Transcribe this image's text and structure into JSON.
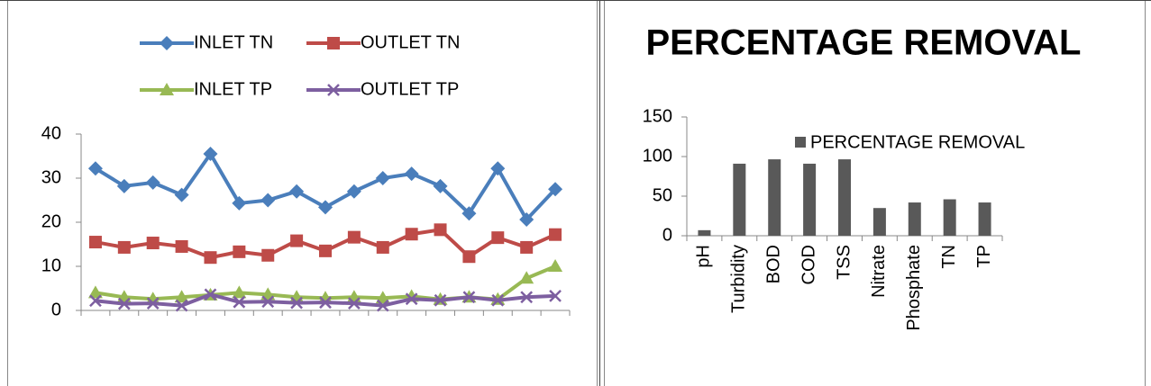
{
  "chart_data": [
    {
      "type": "line",
      "categories": [
        null,
        null,
        null,
        null,
        null,
        null,
        null,
        null,
        null,
        null,
        null,
        null,
        null,
        null,
        null,
        null,
        null
      ],
      "series": [
        {
          "name": "INLET TN",
          "color": "#4a7ebb",
          "marker": "diamond",
          "values": [
            32.2,
            28.2,
            29,
            26.2,
            35.5,
            24.3,
            25,
            27,
            23.4,
            27,
            30,
            31,
            28.2,
            22,
            32.2,
            20.6,
            27.5
          ]
        },
        {
          "name": "OUTLET TN",
          "color": "#be4b48",
          "marker": "square",
          "values": [
            15.5,
            14.3,
            15.3,
            14.5,
            12,
            13.3,
            12.5,
            15.8,
            13.5,
            16.6,
            14.3,
            17.3,
            18.3,
            12.2,
            16.5,
            14.3,
            17.2
          ]
        },
        {
          "name": "INLET TP",
          "color": "#98b954",
          "marker": "triangle",
          "values": [
            4,
            3,
            2.6,
            3,
            3.5,
            4,
            3.6,
            3,
            2.8,
            3,
            2.8,
            3.2,
            2.5,
            3,
            2.5,
            7.3,
            10
          ]
        },
        {
          "name": "OUTLET TP",
          "color": "#7d5fa0",
          "marker": "x",
          "values": [
            2.2,
            1.5,
            1.6,
            1.1,
            3.6,
            1.9,
            2,
            1.7,
            1.8,
            1.6,
            1.1,
            2.6,
            2.3,
            3,
            2.3,
            3,
            3.3
          ]
        }
      ],
      "ylim": [
        0,
        40
      ],
      "yticks": [
        0,
        10,
        20,
        30,
        40
      ],
      "legend": "top"
    },
    {
      "type": "bar",
      "title": "PERCENTAGE REMOVAL",
      "categories": [
        "pH",
        "Turbidity",
        "BOD",
        "COD",
        "TSS",
        "Nitrate",
        "Phosphate",
        "TN",
        "TP"
      ],
      "series": [
        {
          "name": "PERCENTAGE REMOVAL",
          "color": "#595959",
          "values": [
            7,
            91,
            96.5,
            91,
            96.5,
            35,
            42,
            46,
            42
          ]
        }
      ],
      "ylim": [
        0,
        150
      ],
      "yticks": [
        0,
        50,
        100,
        150
      ],
      "legend": "top-right"
    }
  ]
}
